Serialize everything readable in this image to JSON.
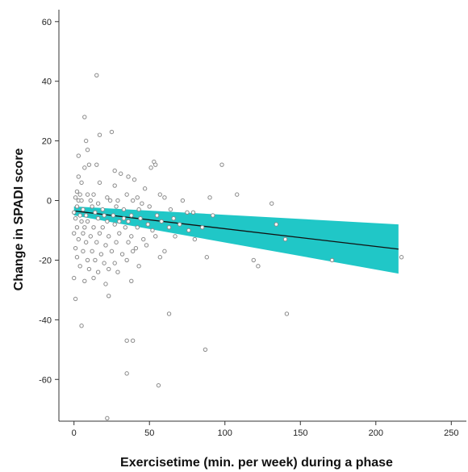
{
  "chart_data": {
    "type": "scatter",
    "xlabel": "Exercisetime (min. per week) during a phase",
    "ylabel": "Change in SPADI score",
    "xlim": [
      -10,
      260
    ],
    "ylim": [
      -74,
      64
    ],
    "xticks": [
      0,
      50,
      100,
      150,
      200,
      250
    ],
    "yticks": [
      -60,
      -40,
      -20,
      0,
      20,
      40,
      60
    ],
    "grid": false,
    "regression": {
      "x": [
        0,
        215
      ],
      "y": [
        -3.5,
        -16.3
      ],
      "ci_upper": [
        -2.0,
        -8.0
      ],
      "ci_lower": [
        -5.0,
        -24.5
      ],
      "band_color": "#20c7c7",
      "line_color": "#111111"
    },
    "point_color": "#8a8a8a",
    "points": [
      [
        15,
        42
      ],
      [
        7,
        28
      ],
      [
        25,
        23
      ],
      [
        17,
        22
      ],
      [
        8,
        20
      ],
      [
        9,
        17
      ],
      [
        3,
        15
      ],
      [
        98,
        12
      ],
      [
        53,
        13
      ],
      [
        51,
        11
      ],
      [
        54,
        12
      ],
      [
        10,
        12
      ],
      [
        7,
        11
      ],
      [
        15,
        12
      ],
      [
        27,
        10
      ],
      [
        31,
        9
      ],
      [
        3,
        8
      ],
      [
        5,
        6
      ],
      [
        36,
        8
      ],
      [
        40,
        7
      ],
      [
        17,
        6
      ],
      [
        27,
        5
      ],
      [
        47,
        4
      ],
      [
        2,
        3
      ],
      [
        4,
        2
      ],
      [
        9,
        2
      ],
      [
        13,
        2
      ],
      [
        22,
        1
      ],
      [
        35,
        2
      ],
      [
        42,
        1
      ],
      [
        57,
        2
      ],
      [
        1,
        1
      ],
      [
        3,
        0
      ],
      [
        5,
        0
      ],
      [
        11,
        0
      ],
      [
        16,
        -1
      ],
      [
        24,
        0
      ],
      [
        29,
        0
      ],
      [
        39,
        0
      ],
      [
        45,
        -1
      ],
      [
        60,
        1
      ],
      [
        72,
        0
      ],
      [
        90,
        1
      ],
      [
        108,
        2
      ],
      [
        131,
        -1
      ],
      [
        2,
        -2
      ],
      [
        6,
        -3
      ],
      [
        12,
        -2
      ],
      [
        19,
        -3
      ],
      [
        28,
        -2
      ],
      [
        33,
        -3
      ],
      [
        43,
        -3
      ],
      [
        50,
        -2
      ],
      [
        64,
        -3
      ],
      [
        75,
        -4
      ],
      [
        0,
        -4
      ],
      [
        4,
        -5
      ],
      [
        8,
        -5
      ],
      [
        14,
        -4
      ],
      [
        20,
        -5
      ],
      [
        26,
        -5
      ],
      [
        33,
        -6
      ],
      [
        38,
        -5
      ],
      [
        44,
        -6
      ],
      [
        55,
        -5
      ],
      [
        66,
        -6
      ],
      [
        79,
        -4
      ],
      [
        92,
        -5
      ],
      [
        1,
        -6
      ],
      [
        5,
        -7
      ],
      [
        9,
        -7
      ],
      [
        16,
        -6
      ],
      [
        22,
        -7
      ],
      [
        30,
        -7
      ],
      [
        36,
        -7
      ],
      [
        49,
        -8
      ],
      [
        58,
        -7
      ],
      [
        70,
        -8
      ],
      [
        2,
        -9
      ],
      [
        7,
        -9
      ],
      [
        13,
        -9
      ],
      [
        19,
        -9
      ],
      [
        27,
        -8
      ],
      [
        34,
        -9
      ],
      [
        42,
        -9
      ],
      [
        52,
        -10
      ],
      [
        63,
        -9
      ],
      [
        76,
        -10
      ],
      [
        85,
        -9
      ],
      [
        0,
        -11
      ],
      [
        6,
        -11
      ],
      [
        11,
        -12
      ],
      [
        17,
        -11
      ],
      [
        23,
        -12
      ],
      [
        30,
        -11
      ],
      [
        38,
        -12
      ],
      [
        46,
        -13
      ],
      [
        54,
        -12
      ],
      [
        67,
        -12
      ],
      [
        80,
        -13
      ],
      [
        134,
        -8
      ],
      [
        3,
        -13
      ],
      [
        8,
        -14
      ],
      [
        15,
        -14
      ],
      [
        21,
        -15
      ],
      [
        28,
        -14
      ],
      [
        36,
        -14
      ],
      [
        41,
        -16
      ],
      [
        48,
        -15
      ],
      [
        60,
        -17
      ],
      [
        140,
        -13
      ],
      [
        1,
        -16
      ],
      [
        6,
        -17
      ],
      [
        12,
        -17
      ],
      [
        18,
        -18
      ],
      [
        25,
        -17
      ],
      [
        32,
        -18
      ],
      [
        39,
        -17
      ],
      [
        57,
        -19
      ],
      [
        88,
        -19
      ],
      [
        2,
        -19
      ],
      [
        9,
        -20
      ],
      [
        14,
        -20
      ],
      [
        20,
        -21
      ],
      [
        27,
        -21
      ],
      [
        35,
        -20
      ],
      [
        43,
        -22
      ],
      [
        119,
        -20
      ],
      [
        171,
        -20
      ],
      [
        217,
        -19
      ],
      [
        4,
        -22
      ],
      [
        10,
        -23
      ],
      [
        16,
        -24
      ],
      [
        23,
        -23
      ],
      [
        29,
        -24
      ],
      [
        122,
        -22
      ],
      [
        0,
        -26
      ],
      [
        7,
        -27
      ],
      [
        13,
        -26
      ],
      [
        21,
        -28
      ],
      [
        38,
        -27
      ],
      [
        1,
        -33
      ],
      [
        23,
        -32
      ],
      [
        63,
        -38
      ],
      [
        141,
        -38
      ],
      [
        5,
        -42
      ],
      [
        35,
        -47
      ],
      [
        39,
        -47
      ],
      [
        87,
        -50
      ],
      [
        35,
        -58
      ],
      [
        56,
        -62
      ],
      [
        22,
        -73
      ]
    ]
  }
}
